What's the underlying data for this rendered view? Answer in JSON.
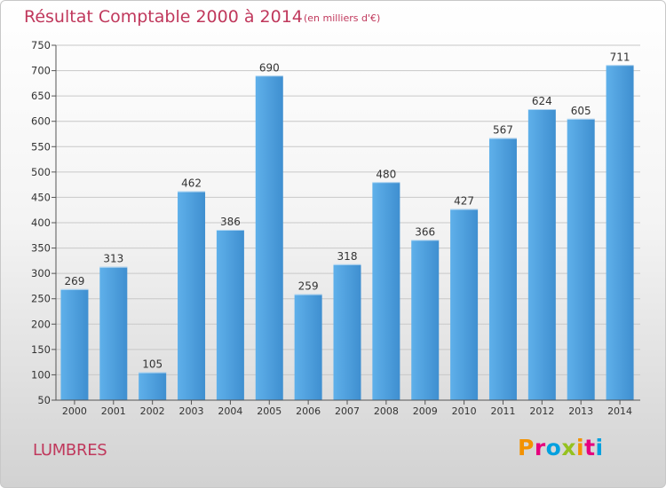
{
  "header": {
    "title": "Résultat Comptable 2000 à 2014",
    "subtitle": "(en milliers d'€)"
  },
  "footer": {
    "commune": "LUMBRES",
    "logo_text": "Proxiti",
    "logo_colors": [
      "#f39200",
      "#e6007e",
      "#00a0df",
      "#95c11f",
      "#f39200",
      "#e6007e",
      "#00a0df"
    ]
  },
  "colors": {
    "bar": "#4a9bdc",
    "title": "#c0385c",
    "gridline": "#c8c8c8",
    "text": "#333333"
  },
  "chart_data": {
    "type": "bar",
    "categories": [
      "2000",
      "2001",
      "2002",
      "2003",
      "2004",
      "2005",
      "2006",
      "2007",
      "2008",
      "2009",
      "2010",
      "2011",
      "2012",
      "2013",
      "2014"
    ],
    "values": [
      269,
      313,
      105,
      462,
      386,
      690,
      259,
      318,
      480,
      366,
      427,
      567,
      624,
      605,
      711
    ],
    "title": "Résultat Comptable 2000 à 2014",
    "subtitle": "(en milliers d'€)",
    "xlabel": "",
    "ylabel": "",
    "ylim": [
      50,
      750
    ],
    "yticks": [
      50,
      100,
      150,
      200,
      250,
      300,
      350,
      400,
      450,
      500,
      550,
      600,
      650,
      700,
      750
    ],
    "grid": true,
    "data_labels": true
  }
}
